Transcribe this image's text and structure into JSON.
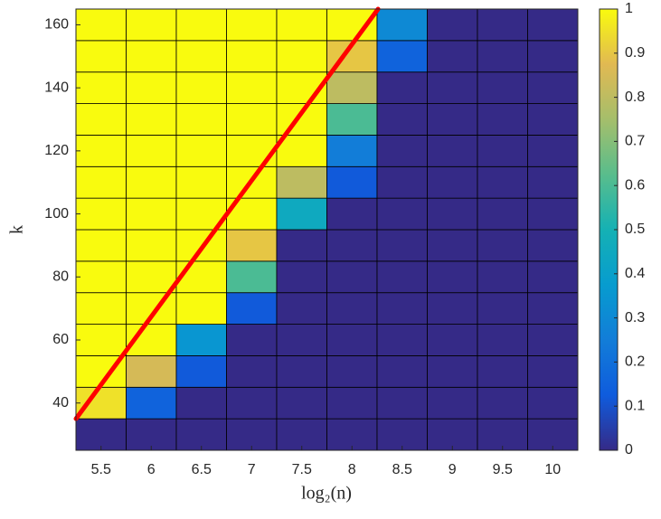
{
  "chart_data": {
    "type": "heatmap",
    "xlabel": "log₂(n)",
    "ylabel": "k",
    "x": [
      5.5,
      6,
      6.5,
      7,
      7.5,
      8,
      8.5,
      9,
      9.5,
      10
    ],
    "y": [
      30,
      40,
      50,
      60,
      70,
      80,
      90,
      100,
      110,
      120,
      130,
      140,
      150,
      160
    ],
    "z": [
      [
        0,
        0,
        0,
        0,
        0,
        0,
        0,
        0,
        0,
        0
      ],
      [
        0.95,
        0.15,
        0,
        0,
        0,
        0,
        0,
        0,
        0,
        0
      ],
      [
        1,
        0.85,
        0.12,
        0,
        0,
        0,
        0,
        0,
        0,
        0
      ],
      [
        1,
        1,
        0.35,
        0,
        0,
        0,
        0,
        0,
        0,
        0
      ],
      [
        1,
        1,
        1,
        0.12,
        0,
        0,
        0,
        0,
        0,
        0
      ],
      [
        1,
        1,
        1,
        0.6,
        0,
        0,
        0,
        0,
        0,
        0
      ],
      [
        1,
        1,
        1,
        0.9,
        0,
        0,
        0,
        0,
        0,
        0
      ],
      [
        1,
        1,
        1,
        1,
        0.45,
        0,
        0,
        0,
        0,
        0
      ],
      [
        1,
        1,
        1,
        1,
        0.8,
        0.12,
        0,
        0,
        0,
        0
      ],
      [
        1,
        1,
        1,
        1,
        1,
        0.25,
        0,
        0,
        0,
        0
      ],
      [
        1,
        1,
        1,
        1,
        1,
        0.6,
        0,
        0,
        0,
        0
      ],
      [
        1,
        1,
        1,
        1,
        1,
        0.8,
        0,
        0,
        0,
        0
      ],
      [
        1,
        1,
        1,
        1,
        1,
        0.9,
        0.15,
        0,
        0,
        0
      ],
      [
        1,
        1,
        1,
        1,
        1,
        1,
        0.3,
        0,
        0,
        0
      ]
    ],
    "xlim": [
      5.25,
      10.25
    ],
    "ylim": [
      25,
      165
    ],
    "xticks": [
      5.5,
      6,
      6.5,
      7,
      7.5,
      8,
      8.5,
      9,
      9.5,
      10
    ],
    "yticks": [
      40,
      60,
      80,
      100,
      120,
      140,
      160
    ],
    "colormap": "parula",
    "clim": [
      0,
      1
    ],
    "cticks": [
      0,
      0.1,
      0.2,
      0.3,
      0.4,
      0.5,
      0.6,
      0.7,
      0.8,
      0.9,
      1
    ],
    "reference_line": {
      "x": [
        5.25,
        8.26
      ],
      "y": [
        35,
        165
      ],
      "color": "#ff0000"
    }
  }
}
